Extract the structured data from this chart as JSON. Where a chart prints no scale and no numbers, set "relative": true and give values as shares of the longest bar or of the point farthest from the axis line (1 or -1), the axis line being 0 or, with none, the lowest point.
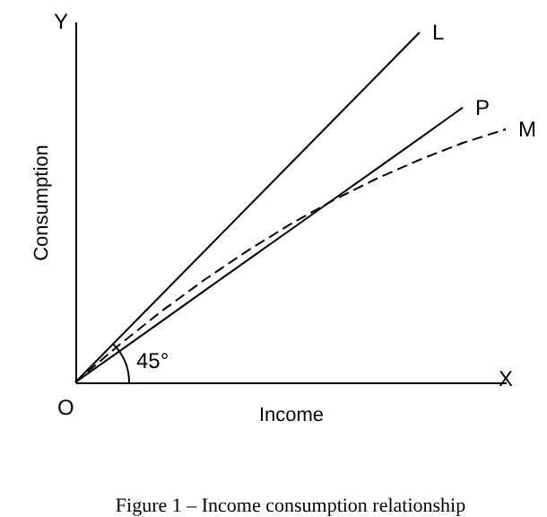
{
  "chart_data": {
    "type": "line",
    "relative": true,
    "title": "Figure 1 – Income consumption relationship",
    "xlabel": "Income",
    "ylabel": "Consumption",
    "categories": [
      null,
      null,
      null,
      null,
      null,
      null,
      null,
      null,
      null,
      null,
      null
    ],
    "series": [
      {
        "name": "L",
        "color": "#000000",
        "line_style": "solid",
        "values": [
          0,
          0.125,
          0.25,
          0.375,
          0.5,
          0.625,
          0.75,
          0.875,
          1.0,
          null,
          null
        ]
      },
      {
        "name": "P",
        "color": "#000000",
        "line_style": "solid",
        "values": [
          0,
          0.087,
          0.174,
          0.262,
          0.349,
          0.436,
          0.523,
          0.61,
          0.697,
          0.785,
          null
        ]
      },
      {
        "name": "M",
        "color": "#000000",
        "line_style": "dashed",
        "values": [
          0,
          0.105,
          0.203,
          0.293,
          0.376,
          0.452,
          0.521,
          0.582,
          0.636,
          0.684,
          0.723
        ]
      }
    ],
    "annotations": [
      "Y",
      "X",
      "O",
      "45°"
    ]
  }
}
